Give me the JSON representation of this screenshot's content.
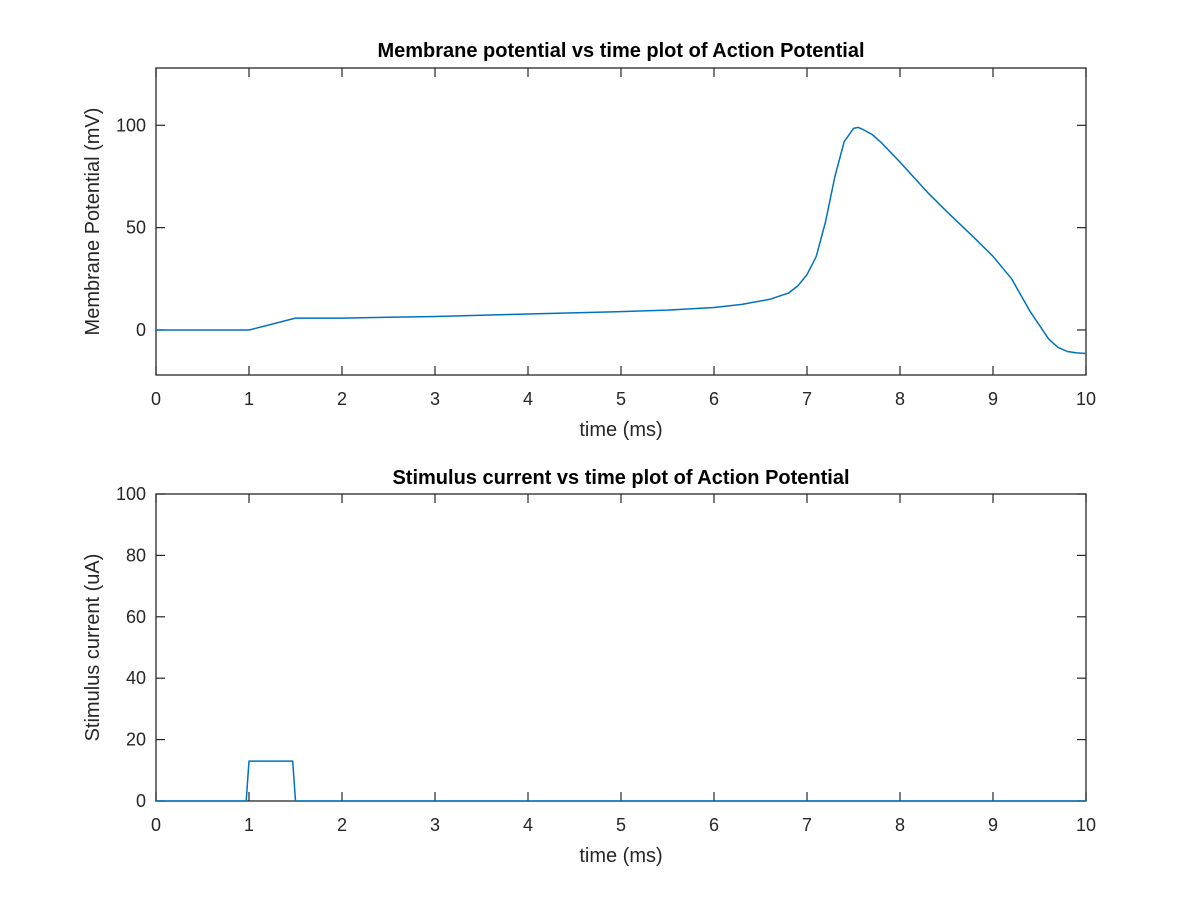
{
  "chart_data": [
    {
      "type": "line",
      "title": "Membrane potential vs time plot of Action Potential",
      "xlabel": "time (ms)",
      "ylabel": "Membrane Potential (mV)",
      "xlim": [
        0,
        10
      ],
      "ylim": [
        -22,
        128
      ],
      "xticks": [
        "0",
        "1",
        "2",
        "3",
        "4",
        "5",
        "6",
        "7",
        "8",
        "9",
        "10"
      ],
      "yticks": [
        "0",
        "50",
        "100"
      ],
      "grid": false,
      "line_color": "#0072BD",
      "series": [
        {
          "x": [
            0,
            1.0,
            1.5,
            2,
            3,
            4,
            5,
            5.5,
            6,
            6.3,
            6.6,
            6.8,
            6.9,
            7.0,
            7.1,
            7.2,
            7.3,
            7.4,
            7.5,
            7.55,
            7.6,
            7.7,
            7.8,
            8,
            8.3,
            8.5,
            8.8,
            9.0,
            9.2,
            9.4,
            9.6,
            9.7,
            9.8,
            9.9,
            10
          ],
          "y": [
            0,
            0,
            5.8,
            5.8,
            6.6,
            7.8,
            9.0,
            9.7,
            11.0,
            12.5,
            15.0,
            18.0,
            21.5,
            27.0,
            36.0,
            53.0,
            75.0,
            92.0,
            98.5,
            99.0,
            98.0,
            95.5,
            91.5,
            82.0,
            67.0,
            58.0,
            45.0,
            36.0,
            25.0,
            9.0,
            -4.5,
            -8.5,
            -10.5,
            -11.2,
            -11.5
          ]
        }
      ]
    },
    {
      "type": "line",
      "title": "Stimulus current vs time plot of Action Potential",
      "xlabel": "time (ms)",
      "ylabel": "Stimulus current (uA)",
      "xlim": [
        0,
        10
      ],
      "ylim": [
        0,
        100
      ],
      "xticks": [
        "0",
        "1",
        "2",
        "3",
        "4",
        "5",
        "6",
        "7",
        "8",
        "9",
        "10"
      ],
      "yticks": [
        "0",
        "20",
        "40",
        "60",
        "80",
        "100"
      ],
      "grid": false,
      "line_color": "#0072BD",
      "series": [
        {
          "x": [
            0,
            0.97,
            1.0,
            1.47,
            1.5,
            10
          ],
          "y": [
            0,
            0,
            13,
            13,
            0,
            0
          ]
        }
      ]
    }
  ]
}
